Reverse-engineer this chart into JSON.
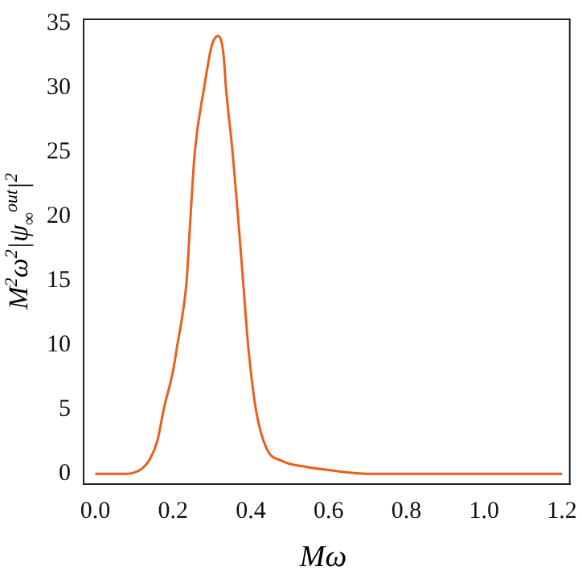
{
  "chart_data": {
    "type": "line",
    "xlabel": "Mω",
    "ylabel": "M$^{2}$ω$^{2}$|ψ$_{∞}$$^{out}$|$^{2}$",
    "x": [
      0,
      0.08,
      0.1,
      0.12,
      0.14,
      0.16,
      0.176,
      0.2,
      0.211,
      0.225,
      0.235,
      0.245,
      0.256,
      0.28,
      0.3,
      0.316,
      0.33,
      0.336,
      0.353,
      0.367,
      0.38,
      0.393,
      0.413,
      0.44,
      0.48,
      0.55,
      0.6,
      0.65,
      0.7,
      1.2
    ],
    "series": [
      {
        "color": "#e8601c",
        "values": [
          0,
          0,
          0.1,
          0.4,
          1.1,
          2.6,
          5,
          8,
          10,
          12.5,
          15,
          20,
          25,
          30,
          33.3,
          34,
          32.5,
          30,
          25,
          20,
          15,
          10,
          5,
          2,
          1,
          0.5,
          0.3,
          0.1,
          0,
          0
        ]
      }
    ],
    "xlim": [
      -0.03,
      1.22
    ],
    "ylim": [
      -0.8,
      35.3
    ],
    "xticks": [
      {
        "value": 0,
        "label": "0.0"
      },
      {
        "value": 0.2,
        "label": "0.2"
      },
      {
        "value": 0.4,
        "label": "0.4"
      },
      {
        "value": 0.6,
        "label": "0.6"
      },
      {
        "value": 0.8,
        "label": "0.8"
      },
      {
        "value": 1,
        "label": "1.0"
      },
      {
        "value": 1.2,
        "label": "1.2"
      }
    ],
    "yticks": [
      0,
      5,
      10,
      15,
      20,
      25,
      30,
      35
    ],
    "grid": false,
    "legend": false,
    "marker": "none",
    "line_style": "solid"
  }
}
